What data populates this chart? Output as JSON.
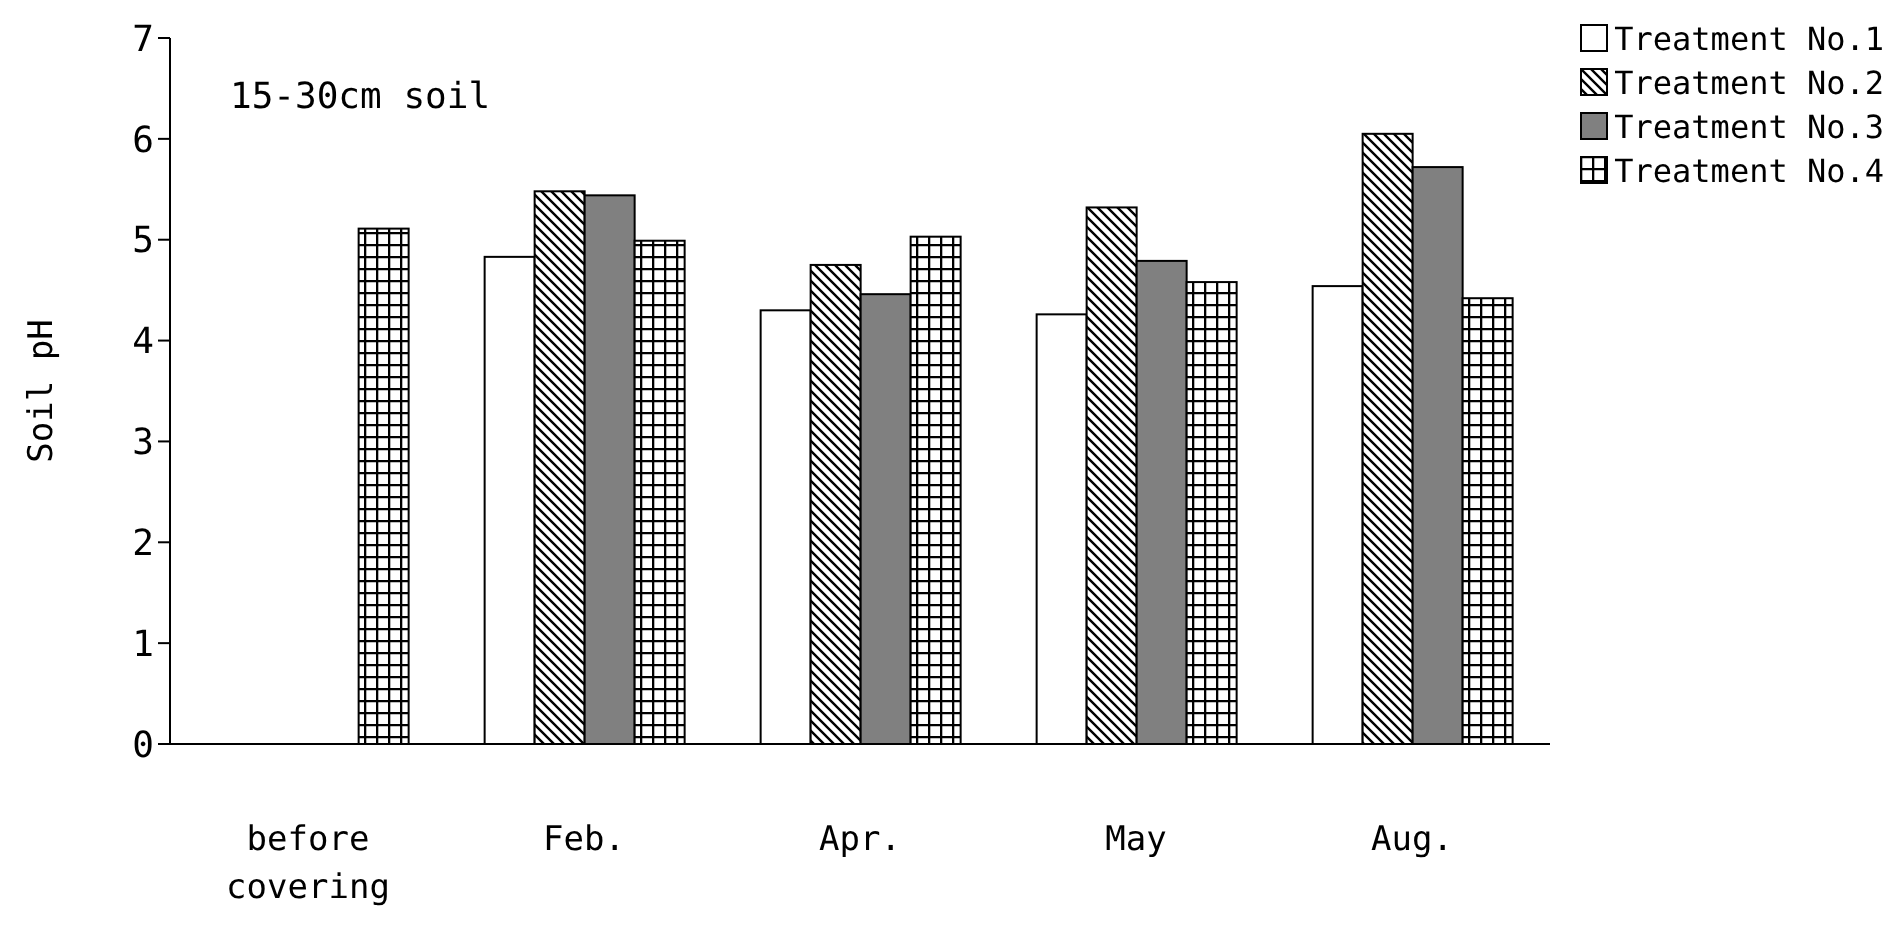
{
  "chart_data": {
    "type": "bar",
    "ylabel": "Soil pH",
    "categories": [
      "before covering",
      "Feb.",
      "Apr.",
      "May",
      "Aug."
    ],
    "series": [
      {
        "name": "Treatment No.1",
        "color": "#ffffff",
        "values": [
          null,
          4.83,
          4.3,
          4.26,
          4.54
        ]
      },
      {
        "name": "Treatment No.2",
        "color": "#ffffff",
        "values": [
          null,
          5.48,
          4.75,
          5.32,
          6.05
        ]
      },
      {
        "name": "Treatment No.3",
        "color": "#808080",
        "values": [
          null,
          5.44,
          4.46,
          4.79,
          5.72
        ]
      },
      {
        "name": "Treatment No.4",
        "color": "#ffffff",
        "values": [
          5.11,
          4.99,
          5.03,
          4.58,
          4.42
        ]
      }
    ],
    "ylim": [
      0,
      7
    ],
    "yticks": [
      0,
      1,
      2,
      3,
      4,
      5,
      6,
      7
    ],
    "legend": "top right",
    "annotations": [
      "15-30cm soil"
    ]
  }
}
